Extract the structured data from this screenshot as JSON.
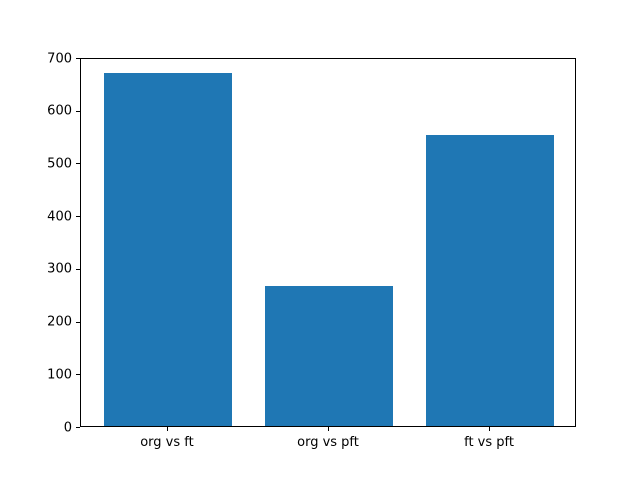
{
  "chart_data": {
    "type": "bar",
    "categories": [
      "org vs ft",
      "org vs pft",
      "ft vs pft"
    ],
    "values": [
      670,
      265,
      553
    ],
    "title": "",
    "xlabel": "",
    "ylabel": "",
    "ylim": [
      0,
      700
    ],
    "yticks": [
      0,
      100,
      200,
      300,
      400,
      500,
      600,
      700
    ],
    "bar_color": "#1f77b4",
    "bar_width_units": 0.8,
    "grid": false,
    "legend": "none",
    "background_color": "#ffffff",
    "spine_color": "#000000"
  }
}
